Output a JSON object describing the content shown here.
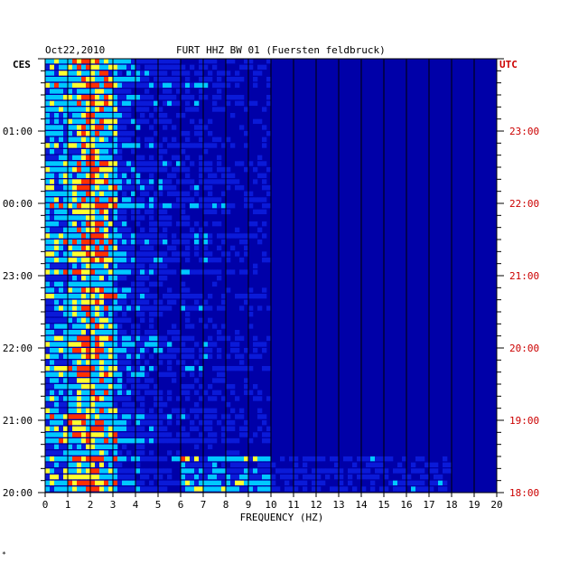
{
  "chart_data": {
    "type": "heatmap",
    "date_label": "Oct22,2010",
    "title": "FURT HHZ BW 01 (Fuersten feldbruck)",
    "left_timezone": "CES",
    "right_timezone": "UTC",
    "xlabel": "FREQUENCY (HZ)",
    "xlim": [
      0,
      20
    ],
    "x_ticks": [
      "0",
      "1",
      "2",
      "3",
      "4",
      "5",
      "6",
      "7",
      "8",
      "9",
      "10",
      "11",
      "12",
      "13",
      "14",
      "15",
      "16",
      "17",
      "18",
      "19",
      "20"
    ],
    "left_time_ticks": [
      "01:00",
      "00:00",
      "23:00",
      "22:00",
      "21:00",
      "20:00"
    ],
    "right_time_ticks": [
      "23:00",
      "22:00",
      "21:00",
      "20:00",
      "19:00",
      "18:00"
    ],
    "time_span_hours": 6,
    "colors": {
      "background": "#0000a8",
      "low": "#0a1ad8",
      "mid": "#00c8ff",
      "high": "#ffff30",
      "peak": "#ff3000",
      "right_axis_text": "#cc0000",
      "grid": "#000000"
    },
    "corner_mark": "*"
  }
}
